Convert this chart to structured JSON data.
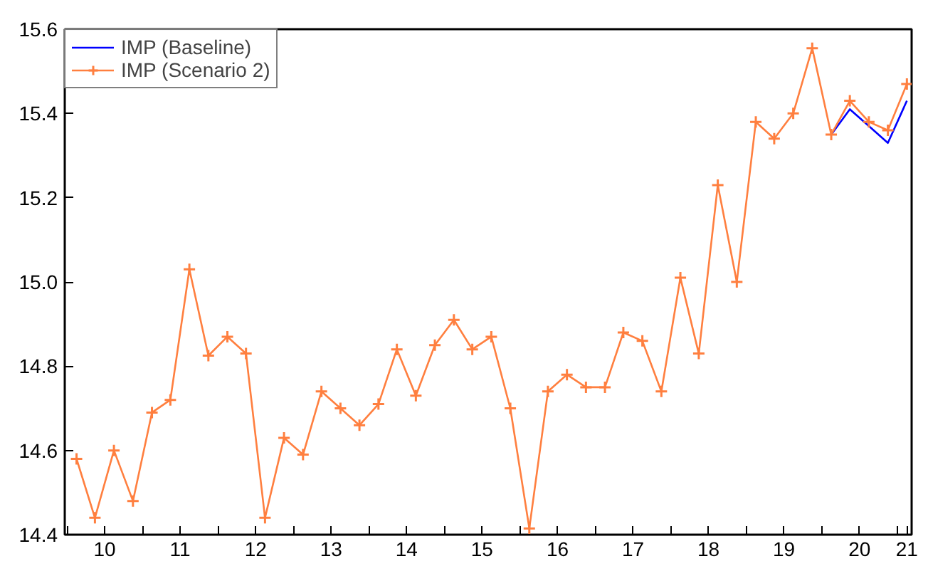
{
  "chart_data": {
    "type": "line",
    "x": [
      "2010-02-15",
      "2010-05-15",
      "2010-08-15",
      "2010-11-15",
      "2011-02-15",
      "2011-05-15",
      "2011-08-15",
      "2011-11-15",
      "2012-02-15",
      "2012-05-15",
      "2012-08-15",
      "2012-11-15",
      "2013-02-15",
      "2013-05-15",
      "2013-08-15",
      "2013-11-15",
      "2014-02-15",
      "2014-05-15",
      "2014-08-15",
      "2014-11-15",
      "2015-02-15",
      "2015-05-15",
      "2015-08-15",
      "2015-11-15",
      "2016-02-15",
      "2016-05-15",
      "2016-08-15",
      "2016-11-15",
      "2017-02-15",
      "2017-05-15",
      "2017-08-15",
      "2017-11-15",
      "2018-02-15",
      "2018-05-15",
      "2018-08-15",
      "2018-11-15",
      "2019-02-15",
      "2019-05-15",
      "2019-08-15",
      "2019-11-15",
      "2020-02-15",
      "2020-05-15",
      "2020-08-15",
      "2020-11-15",
      "2021-02-15"
    ],
    "series": [
      {
        "name": "IMP (Baseline)",
        "color": "#0000ff",
        "marker": "none",
        "values": [
          null,
          null,
          null,
          null,
          null,
          null,
          null,
          null,
          null,
          null,
          null,
          null,
          null,
          null,
          null,
          null,
          null,
          null,
          null,
          null,
          null,
          null,
          null,
          null,
          null,
          null,
          null,
          null,
          null,
          null,
          null,
          null,
          null,
          null,
          null,
          null,
          null,
          null,
          null,
          null,
          15.35,
          15.41,
          15.37,
          15.33,
          15.43
        ]
      },
      {
        "name": "IMP (Scenario 2)",
        "color": "#ff7f3f",
        "marker": "cross",
        "values": [
          14.58,
          14.44,
          14.6,
          14.48,
          14.69,
          14.72,
          15.03,
          14.825,
          14.87,
          14.83,
          14.44,
          14.63,
          14.59,
          14.74,
          14.7,
          14.66,
          14.71,
          14.84,
          14.73,
          14.85,
          14.91,
          14.84,
          14.87,
          14.7,
          14.415,
          14.74,
          14.78,
          14.75,
          14.75,
          14.88,
          14.86,
          14.74,
          15.01,
          14.83,
          15.23,
          15.0,
          15.38,
          15.34,
          15.4,
          15.555,
          15.35,
          15.43,
          15.38,
          15.36,
          15.47
        ]
      }
    ],
    "xlim": [
      "2009-12-20",
      "2021-03-10"
    ],
    "xticks": [
      {
        "value": "2010-01-01",
        "label": null
      },
      {
        "value": "2010-07-01",
        "label": "10"
      },
      {
        "value": "2011-01-01",
        "label": null
      },
      {
        "value": "2011-07-01",
        "label": "11"
      },
      {
        "value": "2012-01-01",
        "label": null
      },
      {
        "value": "2012-07-01",
        "label": "12"
      },
      {
        "value": "2013-01-01",
        "label": null
      },
      {
        "value": "2013-07-01",
        "label": "13"
      },
      {
        "value": "2014-01-01",
        "label": null
      },
      {
        "value": "2014-07-01",
        "label": "14"
      },
      {
        "value": "2015-01-01",
        "label": null
      },
      {
        "value": "2015-07-01",
        "label": "15"
      },
      {
        "value": "2016-01-01",
        "label": null
      },
      {
        "value": "2016-07-01",
        "label": "16"
      },
      {
        "value": "2017-01-01",
        "label": null
      },
      {
        "value": "2017-07-01",
        "label": "17"
      },
      {
        "value": "2018-01-01",
        "label": null
      },
      {
        "value": "2018-07-01",
        "label": "18"
      },
      {
        "value": "2019-01-01",
        "label": null
      },
      {
        "value": "2019-07-01",
        "label": "19"
      },
      {
        "value": "2020-01-01",
        "label": null
      },
      {
        "value": "2020-07-01",
        "label": "20"
      },
      {
        "value": "2021-01-01",
        "label": null
      },
      {
        "value": "2021-02-15",
        "label": "21"
      }
    ],
    "ylim": [
      14.4,
      15.6
    ],
    "yticks": [
      {
        "value": 14.4,
        "label": "14.4"
      },
      {
        "value": 14.6,
        "label": "14.6"
      },
      {
        "value": 14.8,
        "label": "14.8"
      },
      {
        "value": 15.0,
        "label": "15.0"
      },
      {
        "value": 15.2,
        "label": "15.2"
      },
      {
        "value": 15.4,
        "label": "15.4"
      },
      {
        "value": 15.6,
        "label": "15.6"
      }
    ],
    "grid": false,
    "legend": "top left",
    "line_style": "solid"
  }
}
